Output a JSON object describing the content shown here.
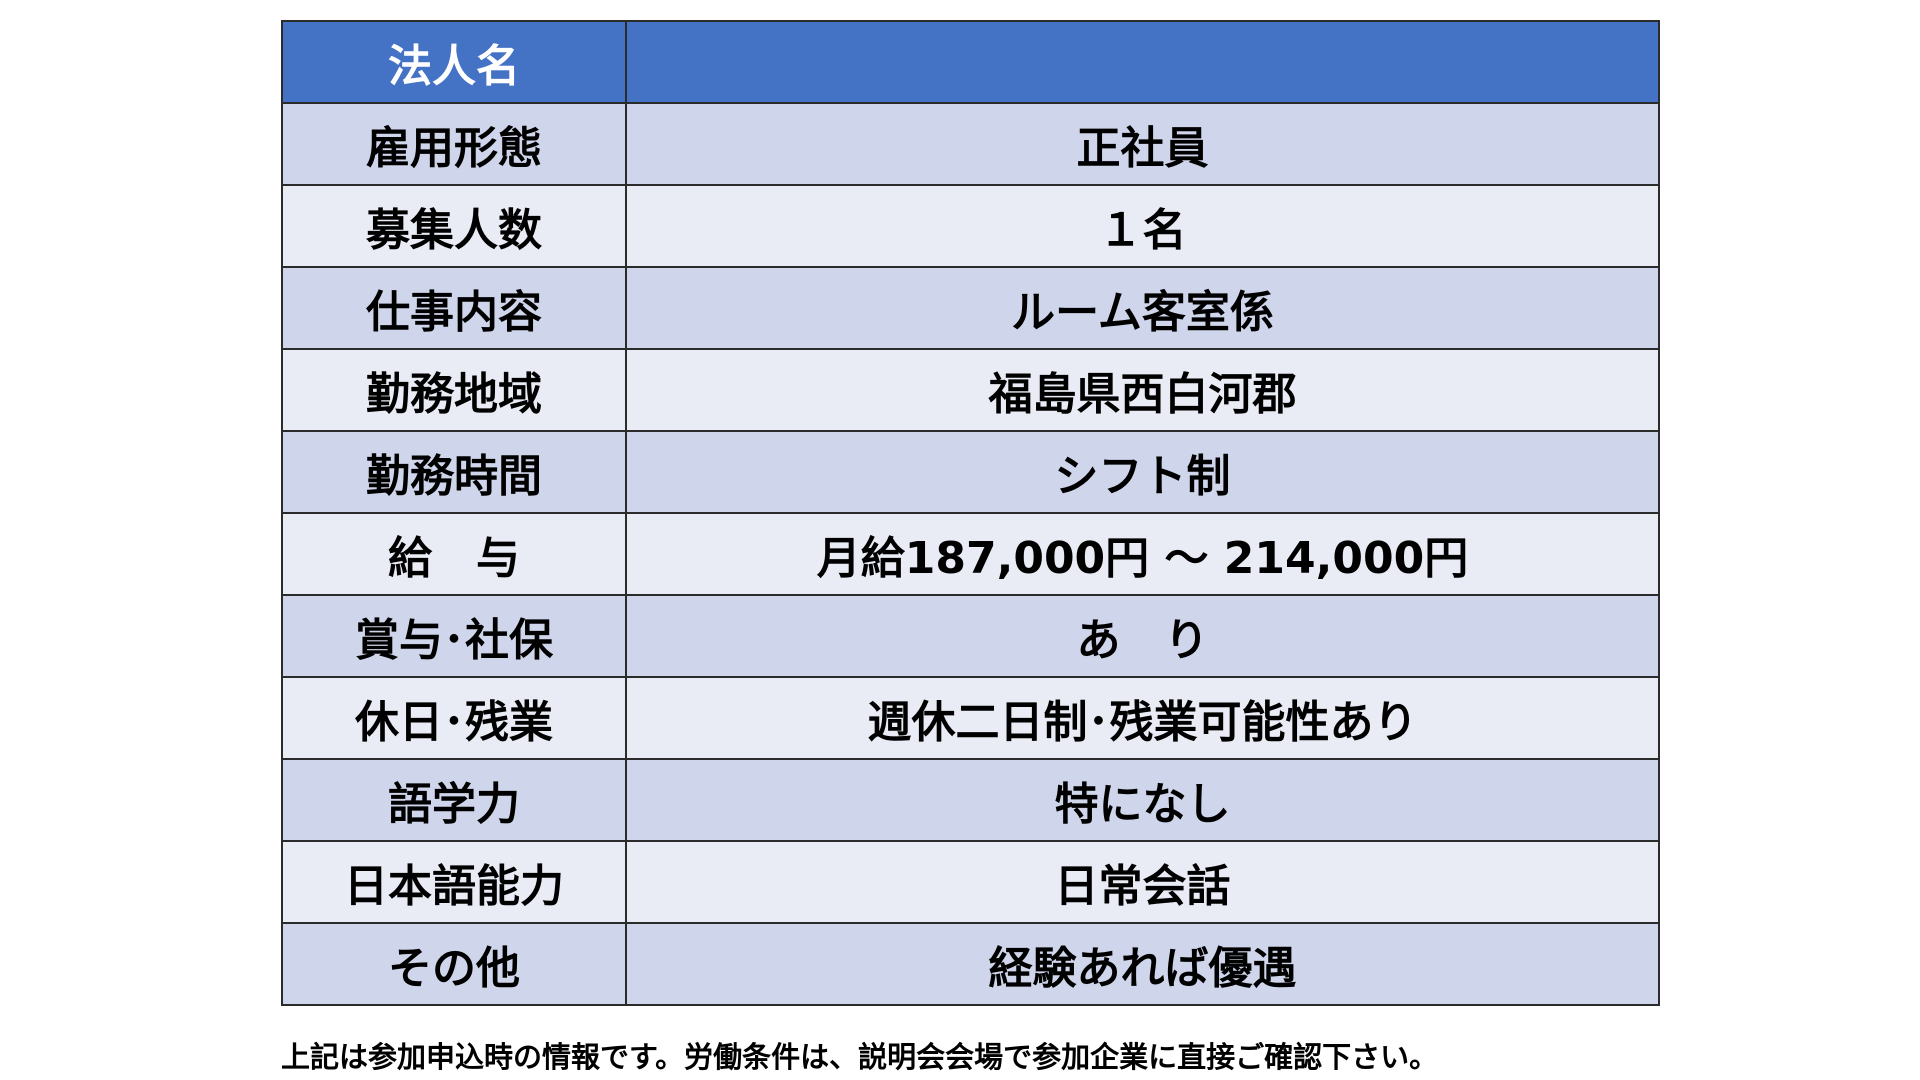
{
  "colors": {
    "header": "#4472C4",
    "row_odd": "#CFD5EA",
    "row_even": "#E9EBF5"
  },
  "table": {
    "header": {
      "label": "法人名",
      "value": ""
    },
    "rows": [
      {
        "label": "雇用形態",
        "value": "正社員"
      },
      {
        "label": "募集人数",
        "value": "１名"
      },
      {
        "label": "仕事内容",
        "value": "ルーム客室係"
      },
      {
        "label": "勤務地域",
        "value": "福島県西白河郡"
      },
      {
        "label": "勤務時間",
        "value": "シフト制"
      },
      {
        "label": "給　与",
        "value": "月給187,000円 ～ 214,000円"
      },
      {
        "label": "賞与･社保",
        "value": "あ　り"
      },
      {
        "label": "休日･残業",
        "value": "週休二日制･残業可能性あり"
      },
      {
        "label": "語学力",
        "value": "特になし"
      },
      {
        "label": "日本語能力",
        "value": "日常会話"
      },
      {
        "label": "その他",
        "value": "経験あれば優遇"
      }
    ]
  },
  "note": "上記は参加申込時の情報です。労働条件は、説明会会場で参加企業に直接ご確認下さい。"
}
